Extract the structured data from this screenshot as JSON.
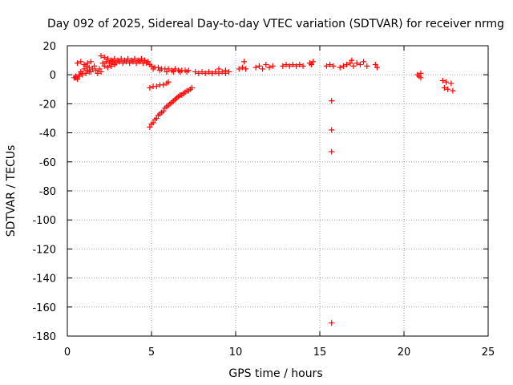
{
  "chart_data": {
    "type": "scatter",
    "title": "Day 092 of 2025, Sidereal Day-to-day VTEC variation (SDTVAR) for receiver nrmg",
    "xlabel": "GPS time / hours",
    "ylabel": "SDTVAR / TECUs",
    "xlim": [
      0,
      25
    ],
    "ylim": [
      -180,
      20
    ],
    "xticks": [
      0,
      5,
      10,
      15,
      20,
      25
    ],
    "yticks": [
      20,
      0,
      -20,
      -40,
      -60,
      -80,
      -100,
      -120,
      -140,
      -160,
      -180
    ],
    "grid": true,
    "marker": "+",
    "color": "#ff0000",
    "series": [
      {
        "name": "SDTVAR",
        "points": [
          [
            0.4,
            -2
          ],
          [
            0.5,
            -1
          ],
          [
            0.6,
            -3
          ],
          [
            0.7,
            0
          ],
          [
            0.8,
            2
          ],
          [
            0.9,
            1
          ],
          [
            1.0,
            4
          ],
          [
            1.1,
            6
          ],
          [
            1.2,
            3
          ],
          [
            1.3,
            5
          ],
          [
            1.4,
            2
          ],
          [
            1.5,
            4
          ],
          [
            1.6,
            6
          ],
          [
            1.7,
            3
          ],
          [
            1.8,
            1
          ],
          [
            1.9,
            4
          ],
          [
            2.0,
            2
          ],
          [
            0.6,
            8
          ],
          [
            0.8,
            9
          ],
          [
            1.0,
            7
          ],
          [
            1.2,
            8
          ],
          [
            1.4,
            9
          ],
          [
            0.5,
            -2
          ],
          [
            0.7,
            -1
          ],
          [
            0.9,
            0
          ],
          [
            1.1,
            1
          ],
          [
            1.3,
            2
          ],
          [
            2.0,
            13
          ],
          [
            2.2,
            12
          ],
          [
            2.4,
            11
          ],
          [
            2.6,
            10
          ],
          [
            2.8,
            11
          ],
          [
            3.0,
            10
          ],
          [
            3.2,
            11
          ],
          [
            3.4,
            10
          ],
          [
            3.6,
            11
          ],
          [
            3.8,
            10
          ],
          [
            4.0,
            11
          ],
          [
            4.2,
            10
          ],
          [
            4.4,
            11
          ],
          [
            4.6,
            10
          ],
          [
            4.8,
            9
          ],
          [
            2.1,
            8
          ],
          [
            2.3,
            9
          ],
          [
            2.5,
            8
          ],
          [
            2.7,
            9
          ],
          [
            2.9,
            8
          ],
          [
            3.1,
            9
          ],
          [
            3.3,
            8
          ],
          [
            3.5,
            9
          ],
          [
            3.7,
            8
          ],
          [
            3.9,
            9
          ],
          [
            4.1,
            8
          ],
          [
            4.3,
            9
          ],
          [
            4.5,
            8
          ],
          [
            4.7,
            8
          ],
          [
            4.9,
            7
          ],
          [
            2.2,
            6
          ],
          [
            2.4,
            5
          ],
          [
            2.6,
            6
          ],
          [
            2.8,
            7
          ],
          [
            5.0,
            6
          ],
          [
            5.2,
            5
          ],
          [
            5.4,
            5
          ],
          [
            5.6,
            4
          ],
          [
            5.8,
            4
          ],
          [
            6.0,
            4
          ],
          [
            6.2,
            3
          ],
          [
            6.4,
            4
          ],
          [
            6.6,
            3
          ],
          [
            6.8,
            3
          ],
          [
            7.0,
            3
          ],
          [
            7.2,
            3
          ],
          [
            5.1,
            4
          ],
          [
            5.5,
            3
          ],
          [
            5.9,
            2
          ],
          [
            6.3,
            2
          ],
          [
            6.7,
            2
          ],
          [
            7.1,
            2
          ],
          [
            7.6,
            2
          ],
          [
            7.8,
            1
          ],
          [
            8.0,
            2
          ],
          [
            8.2,
            1
          ],
          [
            8.4,
            2
          ],
          [
            8.6,
            1
          ],
          [
            8.8,
            2
          ],
          [
            9.0,
            1
          ],
          [
            9.2,
            2
          ],
          [
            9.4,
            1
          ],
          [
            9.6,
            2
          ],
          [
            9.0,
            4
          ],
          [
            9.4,
            3
          ],
          [
            10.2,
            4
          ],
          [
            10.4,
            5
          ],
          [
            10.6,
            4
          ],
          [
            10.5,
            9
          ],
          [
            11.2,
            5
          ],
          [
            11.4,
            6
          ],
          [
            11.6,
            4
          ],
          [
            11.8,
            7
          ],
          [
            12.0,
            5
          ],
          [
            12.2,
            6
          ],
          [
            12.8,
            6
          ],
          [
            13.0,
            7
          ],
          [
            13.2,
            6
          ],
          [
            13.4,
            7
          ],
          [
            13.6,
            6
          ],
          [
            13.8,
            7
          ],
          [
            14.0,
            6
          ],
          [
            14.4,
            8
          ],
          [
            14.6,
            9
          ],
          [
            14.5,
            7
          ],
          [
            15.4,
            6
          ],
          [
            15.6,
            7
          ],
          [
            15.8,
            6
          ],
          [
            16.2,
            5
          ],
          [
            16.4,
            6
          ],
          [
            16.6,
            7
          ],
          [
            16.8,
            8
          ],
          [
            16.9,
            10
          ],
          [
            17.0,
            6
          ],
          [
            17.2,
            8
          ],
          [
            17.4,
            7
          ],
          [
            17.6,
            9
          ],
          [
            17.8,
            6
          ],
          [
            18.3,
            7
          ],
          [
            18.4,
            5
          ],
          [
            20.8,
            0
          ],
          [
            20.9,
            -1
          ],
          [
            21.0,
            1
          ],
          [
            21.0,
            -2
          ],
          [
            22.3,
            -4
          ],
          [
            22.5,
            -5
          ],
          [
            22.8,
            -6
          ],
          [
            22.4,
            -9
          ],
          [
            22.6,
            -10
          ],
          [
            22.9,
            -11
          ],
          [
            4.9,
            -9
          ],
          [
            5.1,
            -8
          ],
          [
            5.3,
            -8
          ],
          [
            5.5,
            -7
          ],
          [
            5.7,
            -7
          ],
          [
            5.9,
            -6
          ],
          [
            6.0,
            -5
          ],
          [
            4.9,
            -36
          ],
          [
            5.0,
            -34
          ],
          [
            5.1,
            -33
          ],
          [
            5.2,
            -31
          ],
          [
            5.3,
            -30
          ],
          [
            5.4,
            -28
          ],
          [
            5.5,
            -27
          ],
          [
            5.6,
            -26
          ],
          [
            5.7,
            -25
          ],
          [
            5.8,
            -23
          ],
          [
            5.9,
            -22
          ],
          [
            6.0,
            -21
          ],
          [
            6.1,
            -20
          ],
          [
            6.2,
            -19
          ],
          [
            6.3,
            -18
          ],
          [
            6.4,
            -17
          ],
          [
            6.5,
            -16
          ],
          [
            6.6,
            -15
          ],
          [
            6.7,
            -14
          ],
          [
            6.8,
            -14
          ],
          [
            6.9,
            -13
          ],
          [
            7.0,
            -12
          ],
          [
            7.1,
            -11
          ],
          [
            7.2,
            -11
          ],
          [
            7.3,
            -10
          ],
          [
            7.4,
            -9
          ],
          [
            15.7,
            -18
          ],
          [
            15.7,
            -38
          ],
          [
            15.7,
            -53
          ],
          [
            15.7,
            -171
          ]
        ]
      }
    ]
  }
}
